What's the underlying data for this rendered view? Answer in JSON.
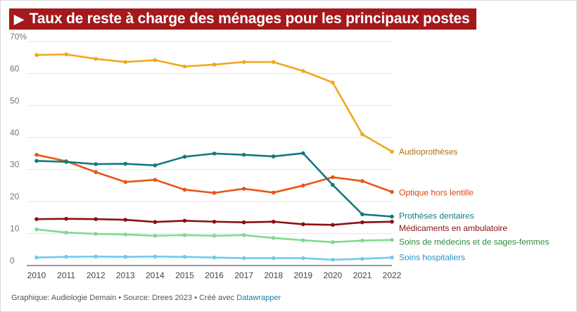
{
  "title": "Taux de reste à charge des ménages pour les principaux postes",
  "title_icon": "play-triangle-icon",
  "footer": {
    "text": "Graphique: Audiologie Demain • Source: Drees 2023 • Créé avec ",
    "link": "Datawrapper"
  },
  "chart_data": {
    "type": "line",
    "x": [
      2010,
      2011,
      2012,
      2013,
      2014,
      2015,
      2016,
      2017,
      2018,
      2019,
      2020,
      2021,
      2022
    ],
    "ylim": [
      0,
      70
    ],
    "yticks": [
      0,
      10,
      20,
      30,
      40,
      50,
      60,
      70
    ],
    "ytick_labels": [
      "0",
      "10",
      "20",
      "30",
      "40",
      "50",
      "60",
      "70%"
    ],
    "grid": true,
    "legend": "direct labels at line ends",
    "series": [
      {
        "name": "Audioprothèses",
        "color": "#f0a91e",
        "label_color": "#b06f12",
        "values": [
          65.8,
          66.0,
          64.6,
          63.6,
          64.2,
          62.2,
          62.8,
          63.6,
          63.6,
          60.8,
          57.2,
          41.0,
          35.6
        ]
      },
      {
        "name": "Optique hors lentille",
        "color": "#ea5415",
        "label_color": "#d84a10",
        "values": [
          34.6,
          32.6,
          29.2,
          26.1,
          26.8,
          23.7,
          22.7,
          24.0,
          22.8,
          25.0,
          27.6,
          26.4,
          23.0
        ]
      },
      {
        "name": "Prothèses dentaires",
        "color": "#127a7d",
        "label_color": "#127a7d",
        "values": [
          32.7,
          32.4,
          31.7,
          31.8,
          31.3,
          34.0,
          35.0,
          34.6,
          34.1,
          35.1,
          25.2,
          16.0,
          15.3
        ]
      },
      {
        "name": "Médicaments en ambulatoire",
        "color": "#8b1010",
        "label_color": "#8b1010",
        "values": [
          14.5,
          14.6,
          14.5,
          14.3,
          13.6,
          14.0,
          13.7,
          13.5,
          13.7,
          12.9,
          12.7,
          13.5,
          13.7
        ]
      },
      {
        "name": "Soins de médecins et de sages-femmes",
        "color": "#7edb8e",
        "label_color": "#2f8a3b",
        "values": [
          11.3,
          10.3,
          9.9,
          9.7,
          9.3,
          9.5,
          9.3,
          9.5,
          8.6,
          7.9,
          7.3,
          7.8,
          8.0
        ]
      },
      {
        "name": "Soins hospitaliers",
        "color": "#6fcbee",
        "label_color": "#2a94c6",
        "values": [
          2.5,
          2.7,
          2.8,
          2.7,
          2.8,
          2.7,
          2.5,
          2.3,
          2.3,
          2.3,
          1.8,
          2.1,
          2.5
        ]
      }
    ]
  }
}
